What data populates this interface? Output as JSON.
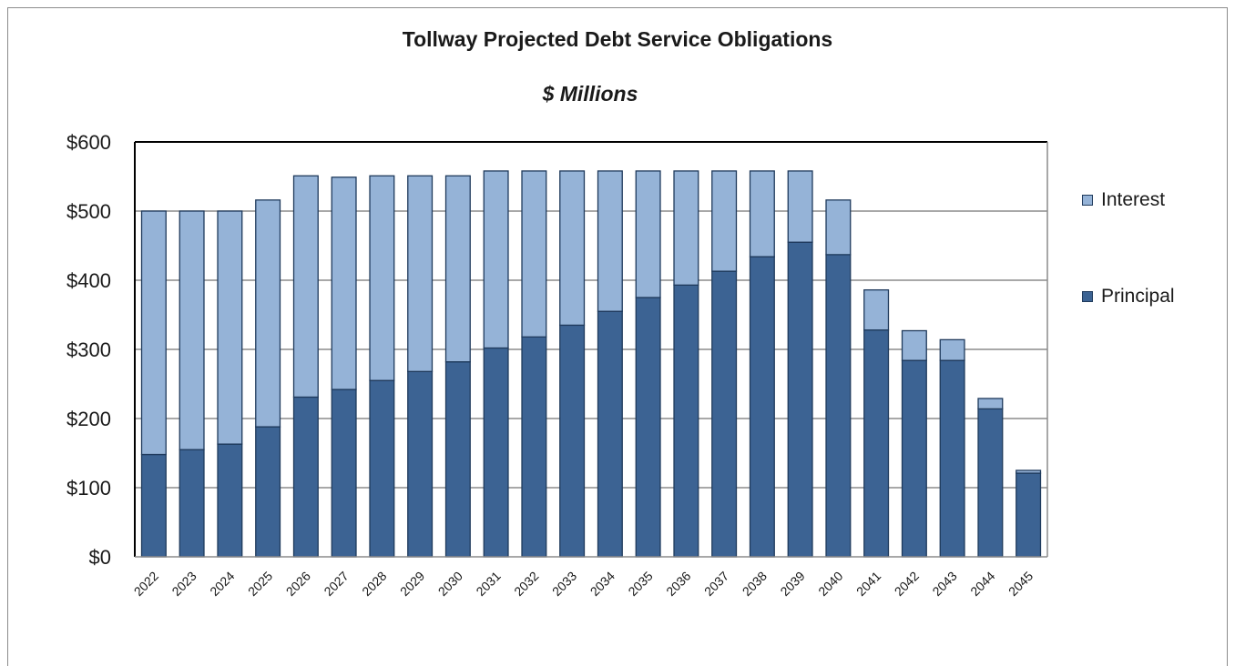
{
  "chart_data": {
    "type": "bar",
    "stacked": true,
    "title": "Tollway Projected Debt Service Obligations",
    "subtitle": "$ Millions",
    "xlabel": "",
    "ylabel": "",
    "ylim": [
      0,
      600
    ],
    "yticks": [
      0,
      100,
      200,
      300,
      400,
      500,
      600
    ],
    "ytick_labels": [
      "$0",
      "$100",
      "$200",
      "$300",
      "$400",
      "$500",
      "$600"
    ],
    "grid": true,
    "legend_position": "right",
    "categories": [
      "2022",
      "2023",
      "2024",
      "2025",
      "2026",
      "2027",
      "2028",
      "2029",
      "2030",
      "2031",
      "2032",
      "2033",
      "2034",
      "2035",
      "2036",
      "2037",
      "2038",
      "2039",
      "2040",
      "2041",
      "2042",
      "2043",
      "2044",
      "2045"
    ],
    "series": [
      {
        "name": "Principal",
        "color": "#3c6393",
        "values": [
          148,
          155,
          163,
          188,
          231,
          242,
          255,
          268,
          282,
          302,
          318,
          335,
          355,
          375,
          393,
          413,
          434,
          455,
          437,
          328,
          284,
          284,
          214,
          121
        ]
      },
      {
        "name": "Interest",
        "color": "#95b3d7",
        "values": [
          352,
          345,
          337,
          328,
          320,
          307,
          296,
          283,
          269,
          256,
          240,
          223,
          203,
          183,
          165,
          145,
          124,
          103,
          79,
          58,
          43,
          30,
          15,
          4
        ]
      }
    ]
  },
  "legend": {
    "items": [
      {
        "label": "Interest",
        "color": "#95b3d7"
      },
      {
        "label": "Principal",
        "color": "#3c6393"
      }
    ]
  }
}
